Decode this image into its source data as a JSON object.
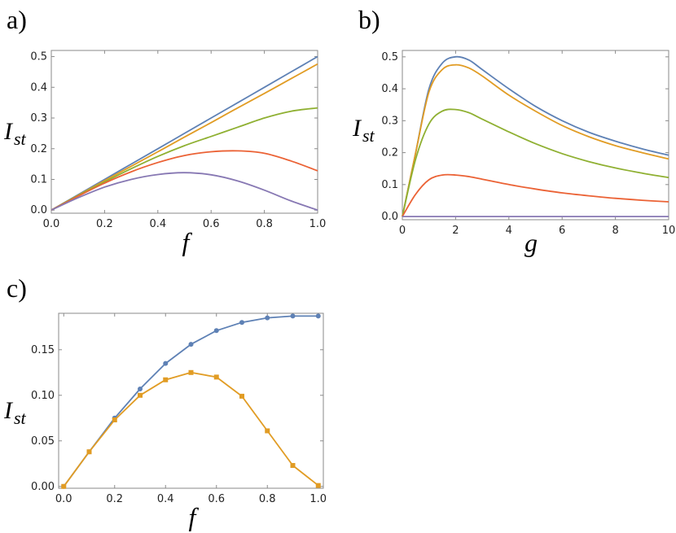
{
  "chart_data": [
    {
      "panel": "a)",
      "type": "line",
      "xlabel": "f",
      "ylabel_main": "I",
      "ylabel_sub": "st",
      "xlim": [
        0,
        1
      ],
      "ylim": [
        -0.01,
        0.52
      ],
      "xticks": [
        "0.0",
        "0.2",
        "0.4",
        "0.6",
        "0.8",
        "1.0"
      ],
      "yticks": [
        "0.0",
        "0.1",
        "0.2",
        "0.3",
        "0.4",
        "0.5"
      ],
      "series": [
        {
          "color": "#5e81b5",
          "x": [
            0,
            0.1,
            0.2,
            0.3,
            0.4,
            0.5,
            0.6,
            0.7,
            0.8,
            0.9,
            1.0
          ],
          "y": [
            0,
            0.05,
            0.1,
            0.15,
            0.2,
            0.25,
            0.3,
            0.35,
            0.4,
            0.45,
            0.5
          ]
        },
        {
          "color": "#e19c24",
          "x": [
            0,
            0.1,
            0.2,
            0.3,
            0.4,
            0.5,
            0.6,
            0.7,
            0.8,
            0.9,
            1.0
          ],
          "y": [
            0,
            0.048,
            0.096,
            0.143,
            0.19,
            0.238,
            0.285,
            0.333,
            0.38,
            0.428,
            0.476
          ]
        },
        {
          "color": "#8fb032",
          "x": [
            0,
            0.1,
            0.2,
            0.3,
            0.4,
            0.5,
            0.6,
            0.7,
            0.8,
            0.9,
            1.0
          ],
          "y": [
            0,
            0.047,
            0.092,
            0.135,
            0.175,
            0.21,
            0.24,
            0.27,
            0.3,
            0.322,
            0.333
          ]
        },
        {
          "color": "#eb6235",
          "x": [
            0,
            0.1,
            0.2,
            0.3,
            0.4,
            0.5,
            0.6,
            0.7,
            0.8,
            0.9,
            1.0
          ],
          "y": [
            0,
            0.045,
            0.088,
            0.125,
            0.155,
            0.178,
            0.19,
            0.193,
            0.185,
            0.16,
            0.128
          ]
        },
        {
          "color": "#8778b3",
          "x": [
            0,
            0.1,
            0.2,
            0.3,
            0.4,
            0.5,
            0.6,
            0.7,
            0.8,
            0.9,
            1.0
          ],
          "y": [
            0,
            0.04,
            0.075,
            0.1,
            0.116,
            0.122,
            0.115,
            0.095,
            0.065,
            0.03,
            0
          ]
        }
      ]
    },
    {
      "panel": "b)",
      "type": "line",
      "xlabel": "g",
      "ylabel_main": "I",
      "ylabel_sub": "st",
      "xlim": [
        0,
        10
      ],
      "ylim": [
        -0.01,
        0.52
      ],
      "xticks": [
        "0",
        "2",
        "4",
        "6",
        "8",
        "10"
      ],
      "yticks": [
        "0.0",
        "0.1",
        "0.2",
        "0.3",
        "0.4",
        "0.5"
      ],
      "series": [
        {
          "color": "#5e81b5",
          "x": [
            0,
            0.5,
            1,
            1.5,
            2,
            2.5,
            3,
            4,
            5,
            6,
            7,
            8,
            9,
            10
          ],
          "y": [
            0,
            0.2,
            0.4,
            0.48,
            0.5,
            0.49,
            0.46,
            0.4,
            0.345,
            0.3,
            0.264,
            0.236,
            0.212,
            0.192
          ]
        },
        {
          "color": "#e19c24",
          "x": [
            0,
            0.5,
            1,
            1.5,
            2,
            2.5,
            3,
            4,
            5,
            6,
            7,
            8,
            9,
            10
          ],
          "y": [
            0,
            0.2,
            0.39,
            0.46,
            0.475,
            0.465,
            0.44,
            0.38,
            0.33,
            0.285,
            0.25,
            0.222,
            0.2,
            0.18
          ]
        },
        {
          "color": "#8fb032",
          "x": [
            0,
            0.5,
            1,
            1.5,
            2,
            2.5,
            3,
            4,
            5,
            6,
            7,
            8,
            9,
            10
          ],
          "y": [
            0,
            0.18,
            0.29,
            0.33,
            0.335,
            0.325,
            0.305,
            0.265,
            0.228,
            0.197,
            0.172,
            0.152,
            0.136,
            0.122
          ]
        },
        {
          "color": "#eb6235",
          "x": [
            0,
            0.5,
            1,
            1.5,
            2,
            2.5,
            3,
            4,
            5,
            6,
            7,
            8,
            9,
            10
          ],
          "y": [
            0,
            0.07,
            0.115,
            0.13,
            0.13,
            0.125,
            0.117,
            0.1,
            0.086,
            0.074,
            0.065,
            0.057,
            0.051,
            0.046
          ]
        },
        {
          "color": "#8778b3",
          "x": [
            0,
            2,
            4,
            6,
            8,
            10
          ],
          "y": [
            0,
            0,
            0,
            0,
            0,
            0
          ]
        }
      ]
    },
    {
      "panel": "c)",
      "type": "line",
      "xlabel": "f",
      "ylabel_main": "I",
      "ylabel_sub": "st",
      "xlim": [
        -0.02,
        1.02
      ],
      "ylim": [
        -0.002,
        0.19
      ],
      "xticks": [
        "0.0",
        "0.2",
        "0.4",
        "0.6",
        "0.8",
        "1.0"
      ],
      "yticks": [
        "0.00",
        "0.05",
        "0.10",
        "0.15"
      ],
      "series": [
        {
          "color": "#5e81b5",
          "marker": "circle",
          "x": [
            0,
            0.1,
            0.2,
            0.3,
            0.4,
            0.5,
            0.6,
            0.7,
            0.8,
            0.9,
            1.0
          ],
          "y": [
            0,
            0.038,
            0.075,
            0.107,
            0.135,
            0.156,
            0.171,
            0.18,
            0.185,
            0.187,
            0.187
          ]
        },
        {
          "color": "#e19c24",
          "marker": "square",
          "x": [
            0,
            0.1,
            0.2,
            0.3,
            0.4,
            0.5,
            0.6,
            0.7,
            0.8,
            0.9,
            1.0
          ],
          "y": [
            0,
            0.038,
            0.073,
            0.1,
            0.117,
            0.125,
            0.12,
            0.099,
            0.061,
            0.023,
            0.001
          ]
        }
      ]
    }
  ]
}
